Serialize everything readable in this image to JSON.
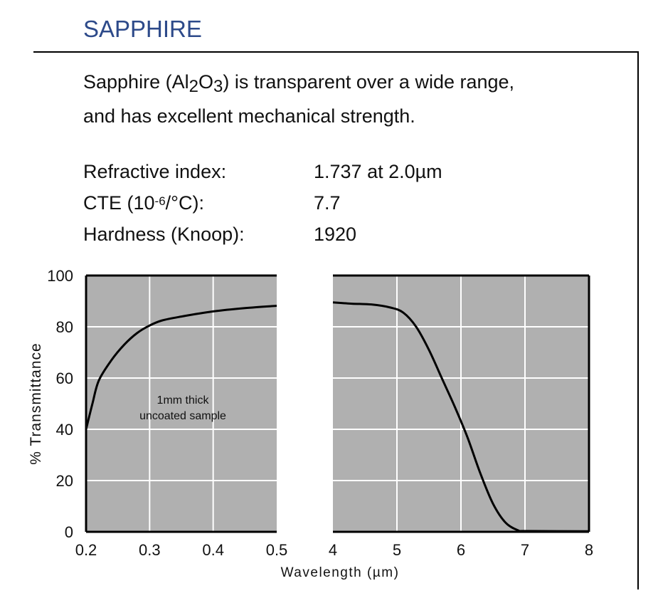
{
  "title": "SAPPHIRE",
  "description": {
    "line1_pre": "Sapphire (Al",
    "sub1": "2",
    "mid": "O",
    "sub2": "3",
    "line1_post": ") is transparent over a wide range,",
    "line2": "and has excellent mechanical strength."
  },
  "properties": [
    {
      "label": "Refractive index:",
      "value": "1.737 at 2.0µm"
    },
    {
      "label_pre": "CTE (10",
      "label_sup": "-6",
      "label_post": "/°C):",
      "value": "7.7"
    },
    {
      "label": "Hardness (Knoop):",
      "value": "1920"
    }
  ],
  "chart_data": {
    "type": "line",
    "ylabel": "% Transmittance",
    "xlabel": "Wavelength (µm)",
    "ylim": [
      0,
      100
    ],
    "yticks": [
      "0",
      "20",
      "40",
      "60",
      "80",
      "100"
    ],
    "grid": true,
    "background_color": "#b0b0b0",
    "grid_color": "#ffffff",
    "line_color": "#000000",
    "annotation": [
      "1mm thick",
      "uncoated sample"
    ],
    "panels": [
      {
        "xlim": [
          0.2,
          0.5
        ],
        "xticks": [
          "0.2",
          "0.3",
          "0.4",
          "0.5"
        ],
        "x": [
          0.2,
          0.21,
          0.22,
          0.24,
          0.26,
          0.28,
          0.3,
          0.32,
          0.35,
          0.4,
          0.45,
          0.5
        ],
        "y": [
          40,
          50,
          59,
          67,
          73,
          77.5,
          80.5,
          82.5,
          84,
          86,
          87.3,
          88.2
        ]
      },
      {
        "xlim": [
          4,
          8
        ],
        "xticks": [
          "4",
          "5",
          "6",
          "7",
          "8"
        ],
        "x": [
          4,
          4.3,
          4.6,
          4.9,
          5.1,
          5.3,
          5.5,
          5.7,
          5.9,
          6.1,
          6.3,
          6.5,
          6.7,
          6.9,
          7,
          8
        ],
        "y": [
          89.5,
          89,
          88.7,
          87.5,
          85.5,
          80,
          71,
          60,
          49,
          37,
          23,
          11,
          3.5,
          0.5,
          0.3,
          0.2
        ]
      }
    ]
  }
}
